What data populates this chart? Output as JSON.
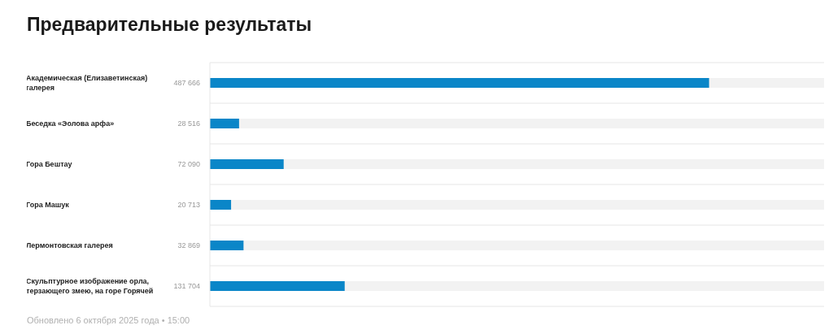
{
  "chart_data": {
    "type": "bar",
    "orientation": "horizontal",
    "title": "Предварительные результаты",
    "categories": [
      "Академическая (Елизаветинская) галерея",
      "Беседка «Эолова арфа»",
      "Гора Бештау",
      "Гора Машук",
      "Лермонтовская галерея",
      "Скульптурное изображение орла, терзающего змею, на горе Горячей"
    ],
    "values": [
      487666,
      28516,
      72090,
      20713,
      32869,
      131704
    ],
    "value_labels": [
      "487 666",
      "28 516",
      "72 090",
      "20 713",
      "32 869",
      "131 704"
    ],
    "color": "#0a86c8",
    "grid": "y",
    "tick_labels": "y",
    "annotations": [
      "Обновлено 6 октября 2025 года • 15:00"
    ]
  }
}
